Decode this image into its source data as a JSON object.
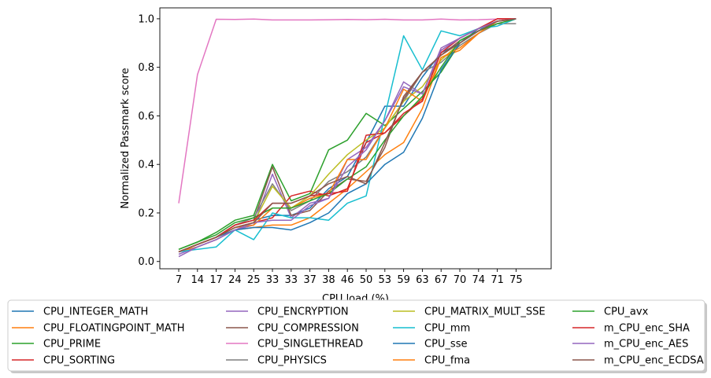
{
  "chart_data": {
    "type": "line",
    "title": "",
    "xlabel": "CPU load (%)",
    "ylabel": "Normalized Passmark score",
    "categories": [
      "7",
      "14",
      "17",
      "24",
      "25",
      "33",
      "33",
      "37",
      "38",
      "46",
      "50",
      "53",
      "59",
      "63",
      "67",
      "70",
      "74",
      "71",
      "75"
    ],
    "ylim": [
      -0.03,
      1.045
    ],
    "yticks": [
      "0.0",
      "0.2",
      "0.4",
      "0.6",
      "0.8",
      "1.0"
    ],
    "grid": false,
    "legend_position": "below",
    "legend_columns": 4,
    "series": [
      {
        "name": "CPU_INTEGER_MATH",
        "color": "#1f77b4",
        "values": [
          0.04,
          0.07,
          0.1,
          0.15,
          0.17,
          0.19,
          0.19,
          0.22,
          0.3,
          0.35,
          0.49,
          0.64,
          0.64,
          0.76,
          0.86,
          0.9,
          0.96,
          0.99,
          1.0
        ]
      },
      {
        "name": "CPU_FLOATINGPOINT_MATH",
        "color": "#ff7f0e",
        "values": [
          0.04,
          0.06,
          0.09,
          0.13,
          0.14,
          0.15,
          0.15,
          0.18,
          0.24,
          0.3,
          0.37,
          0.44,
          0.49,
          0.63,
          0.84,
          0.87,
          0.94,
          0.99,
          1.0
        ]
      },
      {
        "name": "CPU_PRIME",
        "color": "#2ca02c",
        "values": [
          0.05,
          0.08,
          0.12,
          0.17,
          0.19,
          0.4,
          0.25,
          0.28,
          0.46,
          0.5,
          0.61,
          0.56,
          0.63,
          0.7,
          0.78,
          0.9,
          0.95,
          0.99,
          1.0
        ]
      },
      {
        "name": "CPU_SORTING",
        "color": "#d62728",
        "values": [
          0.04,
          0.07,
          0.1,
          0.14,
          0.16,
          0.18,
          0.27,
          0.29,
          0.27,
          0.3,
          0.49,
          0.53,
          0.6,
          0.67,
          0.86,
          0.92,
          0.96,
          1.0,
          1.0
        ]
      },
      {
        "name": "CPU_ENCRYPTION",
        "color": "#9467bd",
        "values": [
          0.03,
          0.06,
          0.09,
          0.13,
          0.15,
          0.36,
          0.18,
          0.24,
          0.26,
          0.42,
          0.47,
          0.58,
          0.74,
          0.69,
          0.88,
          0.92,
          0.96,
          0.99,
          1.0
        ]
      },
      {
        "name": "CPU_COMPRESSION",
        "color": "#8c564b",
        "values": [
          0.04,
          0.07,
          0.1,
          0.15,
          0.17,
          0.39,
          0.19,
          0.21,
          0.29,
          0.34,
          0.33,
          0.47,
          0.68,
          0.78,
          0.85,
          0.91,
          0.95,
          0.99,
          1.0
        ]
      },
      {
        "name": "CPU_SINGLETHREAD",
        "color": "#e377c2",
        "values": [
          0.24,
          0.77,
          0.998,
          0.997,
          0.999,
          0.995,
          0.995,
          0.995,
          0.996,
          0.997,
          0.996,
          0.998,
          0.995,
          0.995,
          0.999,
          0.995,
          0.996,
          0.999,
          1.0
        ]
      },
      {
        "name": "CPU_PHYSICS",
        "color": "#7f7f7f",
        "values": [
          0.04,
          0.07,
          0.1,
          0.15,
          0.18,
          0.32,
          0.21,
          0.25,
          0.33,
          0.37,
          0.43,
          0.55,
          0.66,
          0.78,
          0.82,
          0.89,
          0.94,
          0.98,
          0.98
        ]
      },
      {
        "name": "CPU_MATRIX_MULT_SSE",
        "color": "#bcbd22",
        "values": [
          0.04,
          0.07,
          0.1,
          0.14,
          0.16,
          0.31,
          0.22,
          0.27,
          0.36,
          0.44,
          0.5,
          0.55,
          0.66,
          0.72,
          0.83,
          0.9,
          0.95,
          0.99,
          1.0
        ]
      },
      {
        "name": "CPU_mm",
        "color": "#17becf",
        "values": [
          0.04,
          0.05,
          0.06,
          0.13,
          0.09,
          0.2,
          0.18,
          0.18,
          0.17,
          0.24,
          0.27,
          0.6,
          0.93,
          0.79,
          0.95,
          0.93,
          0.96,
          0.97,
          1.0
        ]
      },
      {
        "name": "CPU_sse",
        "color": "#1f77b4",
        "values": [
          0.04,
          0.07,
          0.1,
          0.13,
          0.14,
          0.14,
          0.13,
          0.16,
          0.2,
          0.28,
          0.32,
          0.4,
          0.45,
          0.59,
          0.79,
          0.9,
          0.95,
          0.99,
          1.0
        ]
      },
      {
        "name": "CPU_fma",
        "color": "#ff7f0e",
        "values": [
          0.04,
          0.07,
          0.1,
          0.14,
          0.15,
          0.22,
          0.22,
          0.26,
          0.28,
          0.42,
          0.42,
          0.55,
          0.71,
          0.66,
          0.84,
          0.88,
          0.94,
          0.99,
          1.0
        ]
      },
      {
        "name": "CPU_avx",
        "color": "#2ca02c",
        "values": [
          0.05,
          0.08,
          0.11,
          0.16,
          0.18,
          0.22,
          0.22,
          0.25,
          0.28,
          0.34,
          0.39,
          0.5,
          0.6,
          0.68,
          0.8,
          0.91,
          0.95,
          0.98,
          1.0
        ]
      },
      {
        "name": "m_CPU_enc_SHA",
        "color": "#d62728",
        "values": [
          0.04,
          0.07,
          0.1,
          0.15,
          0.17,
          0.24,
          0.24,
          0.27,
          0.28,
          0.29,
          0.52,
          0.53,
          0.61,
          0.66,
          0.87,
          0.92,
          0.96,
          1.0,
          1.0
        ]
      },
      {
        "name": "m_CPU_enc_AES",
        "color": "#9467bd",
        "values": [
          0.02,
          0.06,
          0.09,
          0.13,
          0.16,
          0.17,
          0.17,
          0.23,
          0.26,
          0.39,
          0.46,
          0.58,
          0.72,
          0.69,
          0.87,
          0.92,
          0.96,
          0.99,
          1.0
        ]
      },
      {
        "name": "m_CPU_enc_ECDSA",
        "color": "#8c564b",
        "values": [
          0.04,
          0.07,
          0.1,
          0.14,
          0.16,
          0.24,
          0.24,
          0.27,
          0.32,
          0.35,
          0.32,
          0.49,
          0.67,
          0.78,
          0.85,
          0.9,
          0.95,
          0.99,
          1.0
        ]
      }
    ]
  }
}
